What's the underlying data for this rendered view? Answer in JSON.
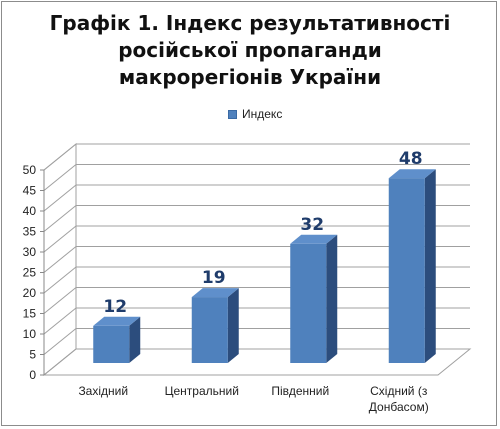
{
  "chart_data": {
    "type": "bar",
    "title": [
      "Графік 1. Індекс результативності",
      "російської пропаганди",
      "макрорегіонів  України"
    ],
    "legend": {
      "entries": [
        "Индекс"
      ],
      "placement": "top"
    },
    "categories": [
      [
        "Західний"
      ],
      [
        "Центральний"
      ],
      [
        "Південний"
      ],
      [
        "Східний (з",
        "Донбасом)"
      ]
    ],
    "series": [
      {
        "name": "Индекс",
        "values": [
          12,
          19,
          32,
          48
        ],
        "color": "#4f81bd"
      }
    ],
    "data_labels": [
      "12",
      "19",
      "32",
      "48"
    ],
    "ylim": [
      0,
      50
    ],
    "yticks": [
      0,
      5,
      10,
      15,
      20,
      25,
      30,
      35,
      40,
      45,
      50
    ],
    "grid": true,
    "style": "3d-column"
  }
}
